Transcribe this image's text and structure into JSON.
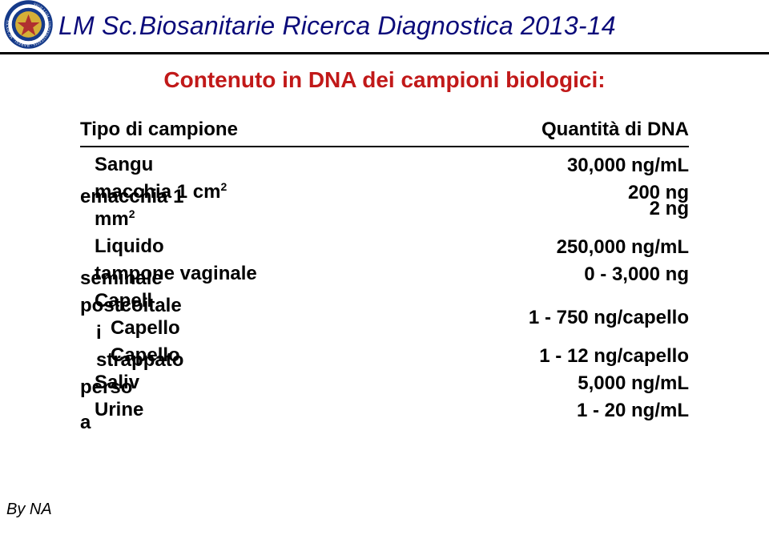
{
  "header": {
    "title": "LM Sc.Biosanitarie Ricerca Diagnostica 2013-14"
  },
  "subtitle": "Contenuto in DNA dei campioni biologici:",
  "table": {
    "head_left": "Tipo di campione",
    "head_right": "Quantità di DNA",
    "rows": [
      {
        "left_a": "Sangu",
        "left_b": "",
        "right": "30,000 ng/mL"
      },
      {
        "left_a": "macchia 1 cm",
        "left_a_sup": "2",
        "left_b_prefix": "e",
        "left_b": "macchia 1",
        "right": "200 ng"
      },
      {
        "left_a": "mm",
        "left_a_sup": "2",
        "left_b": "",
        "right": "2 ng",
        "right_shift_up": true
      },
      {
        "left_a": "Liquido",
        "left_b": "",
        "right": "250,000 ng/mL"
      },
      {
        "left_a": "tampone vaginale",
        "left_b": "seminale",
        "right": "0 - 3,000 ng"
      },
      {
        "left_a": "Capell",
        "left_b": "postcoitale",
        "right": ""
      },
      {
        "left_a": "Capello",
        "left_b_prefix": "i",
        "left_b": "",
        "indent": true,
        "right": "1 - 750 ng/capello",
        "right_shift_up": true
      },
      {
        "left_a": "Capello",
        "left_b": "strappato",
        "indent": true,
        "right": "1 - 12 ng/capello"
      },
      {
        "left_a": "Saliv",
        "left_b": "perso",
        "right": "5,000 ng/mL"
      },
      {
        "left_a": "Urine",
        "left_b_suffix": "a",
        "right": "1 - 20 ng/mL"
      }
    ]
  },
  "footer": "By NA",
  "colors": {
    "title": "#0b0b7a",
    "subtitle": "#c11919",
    "text": "#000000",
    "seal_blue": "#153a8a",
    "seal_gold": "#d4af37"
  }
}
